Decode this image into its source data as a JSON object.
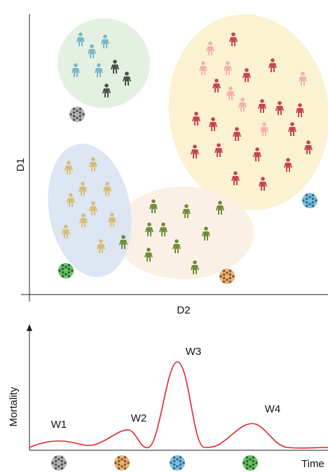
{
  "scatter_panel": {
    "x_label": "D2",
    "y_label": "D1"
  },
  "timeline_panel": {
    "y_label": "Mortality",
    "x_label": "Time",
    "waves": [
      "W1",
      "W2",
      "W3",
      "W4"
    ]
  }
}
